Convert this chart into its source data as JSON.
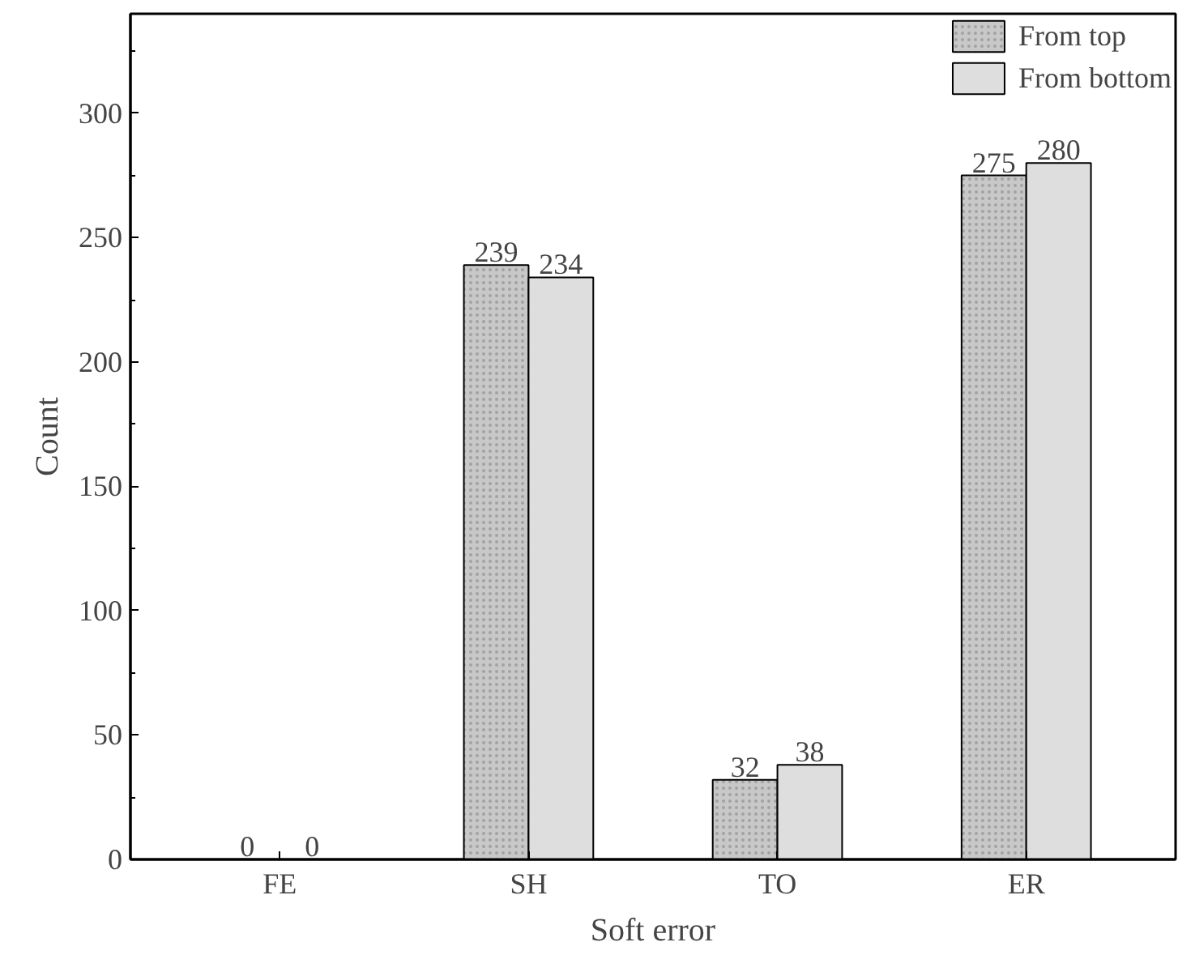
{
  "chart_data": {
    "type": "bar",
    "xlabel": "Soft error",
    "ylabel": "Count",
    "categories": [
      "FE",
      "SH",
      "TO",
      "ER"
    ],
    "series": [
      {
        "name": "From top",
        "color": "#c8c8c8",
        "values": [
          0,
          239,
          32,
          275
        ]
      },
      {
        "name": "From bottom",
        "color": "#dedede",
        "values": [
          0,
          234,
          38,
          280
        ]
      }
    ],
    "ylim": [
      0,
      340
    ],
    "yticks": [
      0,
      50,
      100,
      150,
      200,
      250,
      300
    ],
    "grid": false,
    "legend": "top right",
    "data_labels": true
  }
}
